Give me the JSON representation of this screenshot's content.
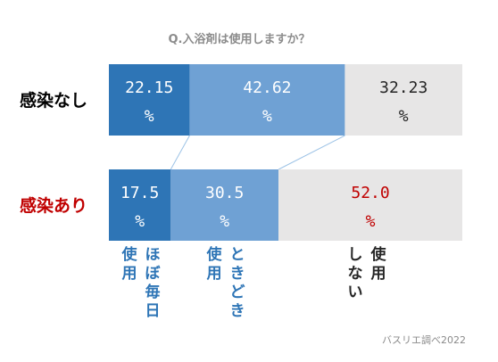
{
  "chart_data": {
    "type": "bar",
    "orientation": "horizontal",
    "stacked": "percent",
    "title": "Q.入浴剤は使用しますか？",
    "categories": [
      "感染なし",
      "感染あり"
    ],
    "series": [
      {
        "name": "ほぼ毎日使用",
        "values": [
          22.15,
          17.5
        ],
        "labels": [
          "22.15",
          "17.5"
        ]
      },
      {
        "name": "ときどき使用",
        "values": [
          42.62,
          30.5
        ],
        "labels": [
          "42.62",
          "30.5"
        ]
      },
      {
        "name": "使用しない",
        "values": [
          32.23,
          52.0
        ],
        "labels": [
          "32.23",
          "52.0"
        ]
      }
    ],
    "value_unit": "%",
    "legend_labels": [
      {
        "col1": "使用",
        "col2": "ほぼ毎日"
      },
      {
        "col1": "使用",
        "col2": "ときどき"
      },
      {
        "col1": "しない",
        "col2": "使用"
      }
    ],
    "credit": "バスリエ調べ2022"
  },
  "colors": {
    "series": [
      "#2e75b6",
      "#6fa1d4",
      "#e7e6e6"
    ],
    "label_text": [
      "#ffffff",
      "#ffffff",
      "#262626"
    ],
    "row_highlight": "#c00000",
    "row_default": "#000000",
    "legend_text": "#2e75b6",
    "legend_text_other": "#262626",
    "connector": "#9dc3e6"
  }
}
